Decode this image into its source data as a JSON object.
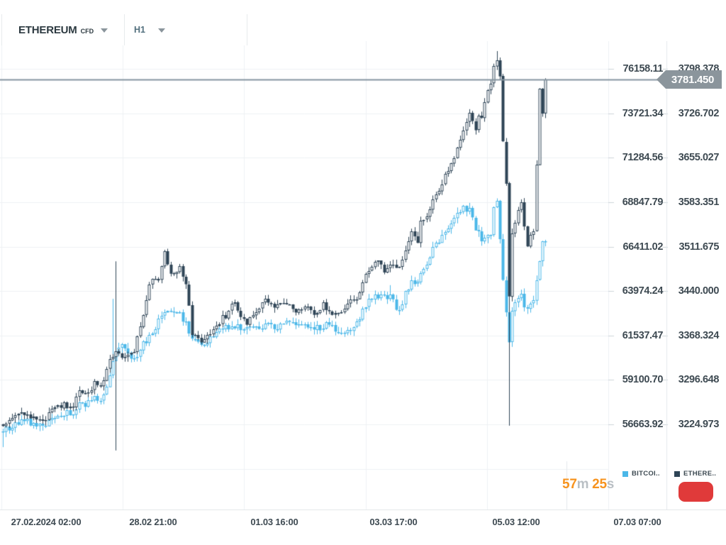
{
  "header": {
    "symbol": "ETHEREUM",
    "instrument_type": "CFD",
    "timeframe": "H1"
  },
  "legend": [
    {
      "label": "BITCOI..",
      "color": "#4bb7e8"
    },
    {
      "label": "ETHERE..",
      "color": "#2e4456"
    }
  ],
  "timer": {
    "m_value": "57",
    "m_unit": "m ",
    "s_value": "25",
    "s_unit": "s"
  },
  "colors": {
    "grid": "#eef1f4",
    "divider": "#e4e9ec",
    "tick_dash": "#ccd4d9",
    "axis_text": "#3e4a52",
    "price_line": "#8595a0",
    "tag_bg": "#8b959c",
    "timer_orange": "#f7931e",
    "timer_gray": "#b9bfc4",
    "button_red": "#e03a3a",
    "bull_fill": "#ffffff"
  },
  "chart_data": {
    "type": "candlestick",
    "overlay": true,
    "timeframe": "H1",
    "bars": 179,
    "grid": true,
    "legend_position": "bottom-right",
    "time_labels": [
      "27.02.2024  02:00",
      "28.02  21:00",
      "01.03  16:00",
      "03.03  17:00",
      "05.03  12:00",
      "07.03  07:00"
    ],
    "price_line": {
      "value": 3781.45,
      "label": "3781.450",
      "series": "ETHEREUM"
    },
    "anchor_index": [
      0,
      5,
      10,
      13,
      17,
      20,
      23,
      25,
      27,
      30,
      32,
      34,
      36,
      39,
      43,
      46,
      48,
      51,
      53,
      55,
      58,
      60,
      62,
      65,
      67,
      69,
      72,
      74,
      76,
      80,
      82,
      86,
      89,
      93,
      96,
      100,
      102,
      105,
      108,
      110,
      113,
      116,
      118,
      120,
      123,
      125,
      127,
      130,
      132,
      134,
      136,
      137,
      139,
      141,
      143,
      144,
      146,
      148,
      150,
      151,
      153,
      154,
      155,
      156,
      157,
      158,
      160,
      161,
      162,
      163,
      164,
      165,
      166,
      167,
      169,
      170,
      171,
      172,
      173,
      174,
      175,
      176,
      177,
      178
    ],
    "series": [
      {
        "name": "BITCOIN",
        "short_label": "BITCOI..",
        "color": "#4bb7e8",
        "scale": {
          "top": 76158.11,
          "bottom": 56663.92,
          "labels": [
            "76158.11",
            "73721.34",
            "71284.56",
            "68847.79",
            "66411.02",
            "63974.24",
            "61537.47",
            "59100.70",
            "56663.92"
          ]
        },
        "anchors": [
          56280,
          56780,
          56780,
          56590,
          57050,
          57360,
          57290,
          57950,
          57750,
          58140,
          58060,
          58720,
          60010,
          61060,
          60210,
          61140,
          61450,
          62350,
          62620,
          62810,
          62730,
          62230,
          61450,
          60870,
          61330,
          61640,
          61840,
          62030,
          62110,
          61840,
          62030,
          62110,
          62030,
          62150,
          62030,
          61960,
          61840,
          62110,
          62030,
          61720,
          61960,
          62110,
          62810,
          63400,
          63780,
          63590,
          63600,
          62900,
          63900,
          64560,
          64370,
          65150,
          65460,
          66310,
          66700,
          67090,
          67560,
          68060,
          68450,
          68570,
          68340,
          67870,
          67400,
          67090,
          66900,
          66700,
          67090,
          68650,
          68840,
          66700,
          64760,
          62810,
          61260,
          62810,
          63780,
          63670,
          63280,
          62810,
          63200,
          63590,
          64760,
          65730,
          66510,
          66700
        ],
        "spikes": [
          {
            "i": 0,
            "low": 55420
          },
          {
            "i": 36,
            "high": 63550,
            "low": 59400
          },
          {
            "i": 127,
            "high": 64300
          },
          {
            "i": 166,
            "low": 59510
          }
        ]
      },
      {
        "name": "ETHEREUM",
        "short_label": "ETHERE..",
        "color": "#2e4456",
        "scale": {
          "top": 3798.378,
          "bottom": 3224.973,
          "labels": [
            "3798.378",
            "3726.702",
            "3655.027",
            "3583.351",
            "3511.675",
            "3440.000",
            "3368.324",
            "3296.648",
            "3224.973"
          ]
        },
        "anchors": [
          3220,
          3242,
          3240,
          3232,
          3249,
          3257,
          3251,
          3278,
          3272,
          3292,
          3283,
          3315,
          3338,
          3337,
          3345,
          3406,
          3452,
          3463,
          3507,
          3463,
          3480,
          3452,
          3371,
          3354,
          3371,
          3377,
          3397,
          3406,
          3423,
          3383,
          3406,
          3423,
          3415,
          3423,
          3406,
          3417,
          3400,
          3417,
          3406,
          3400,
          3423,
          3429,
          3452,
          3474,
          3492,
          3474,
          3480,
          3480,
          3503,
          3532,
          3514,
          3555,
          3560,
          3583,
          3600,
          3617,
          3635,
          3652,
          3680,
          3703,
          3726,
          3709,
          3698,
          3726,
          3715,
          3749,
          3772,
          3800,
          3809,
          3786,
          3686,
          3612,
          3429,
          3532,
          3566,
          3583,
          3543,
          3509,
          3532,
          3535,
          3648,
          3766,
          3726,
          3781.45
        ],
        "spikes": [
          {
            "i": 37,
            "high": 3488,
            "low": 3183
          },
          {
            "i": 127,
            "high": 3487
          },
          {
            "i": 162,
            "high": 3827
          },
          {
            "i": 166,
            "low": 3223
          }
        ]
      }
    ]
  }
}
